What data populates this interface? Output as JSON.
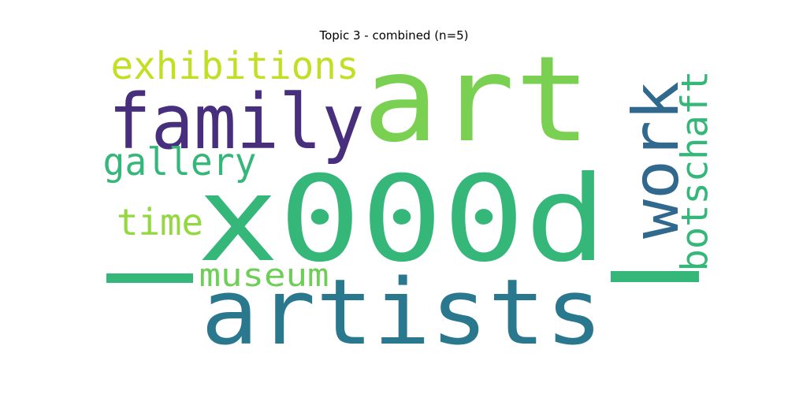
{
  "chart_data": {
    "type": "wordcloud",
    "title": "Topic 3 - combined (n=5)",
    "words": [
      {
        "text": "x000d",
        "color": "#35b779",
        "rotated": false
      },
      {
        "text": "art",
        "color": "#7ad151",
        "rotated": false
      },
      {
        "text": "family",
        "color": "#472f7d",
        "rotated": false
      },
      {
        "text": "artists",
        "color": "#2a788e",
        "rotated": false
      },
      {
        "text": "work",
        "color": "#31688e",
        "rotated": true
      },
      {
        "text": "exhibitions",
        "color": "#c2df23",
        "rotated": false
      },
      {
        "text": "gallery",
        "color": "#35b779",
        "rotated": false
      },
      {
        "text": "time",
        "color": "#93d741",
        "rotated": false
      },
      {
        "text": "museum",
        "color": "#6ece58",
        "rotated": false
      },
      {
        "text": "botschaft",
        "color": "#35b779",
        "rotated": true
      },
      {
        "text": "_",
        "color": "#35b779",
        "rotated": false
      },
      {
        "text": "_",
        "color": "#35b779",
        "rotated": true
      }
    ]
  }
}
